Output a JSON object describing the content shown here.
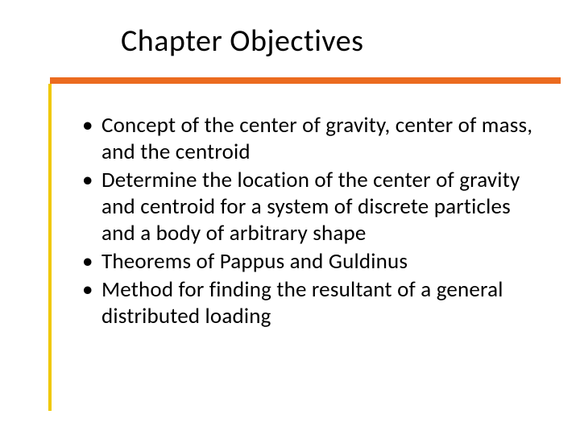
{
  "slide": {
    "title": "Chapter Objectives",
    "title_fontsize": 38,
    "title_color": "#000000",
    "rule_color": "#eb6b1f",
    "rule_height": 8,
    "accent_color": "#f0c800",
    "accent_width": 4,
    "background_color": "#ffffff",
    "bullets": [
      "Concept of the center of gravity, center of mass, and the centroid",
      "Determine the location of the center of gravity and centroid for a system of discrete particles and a body of arbitrary shape",
      "Theorems of Pappus and Guldinus",
      "Method for finding the resultant of a general distributed loading"
    ],
    "bullet_fontsize": 27,
    "bullet_color": "#000000",
    "bullet_marker": "•"
  }
}
